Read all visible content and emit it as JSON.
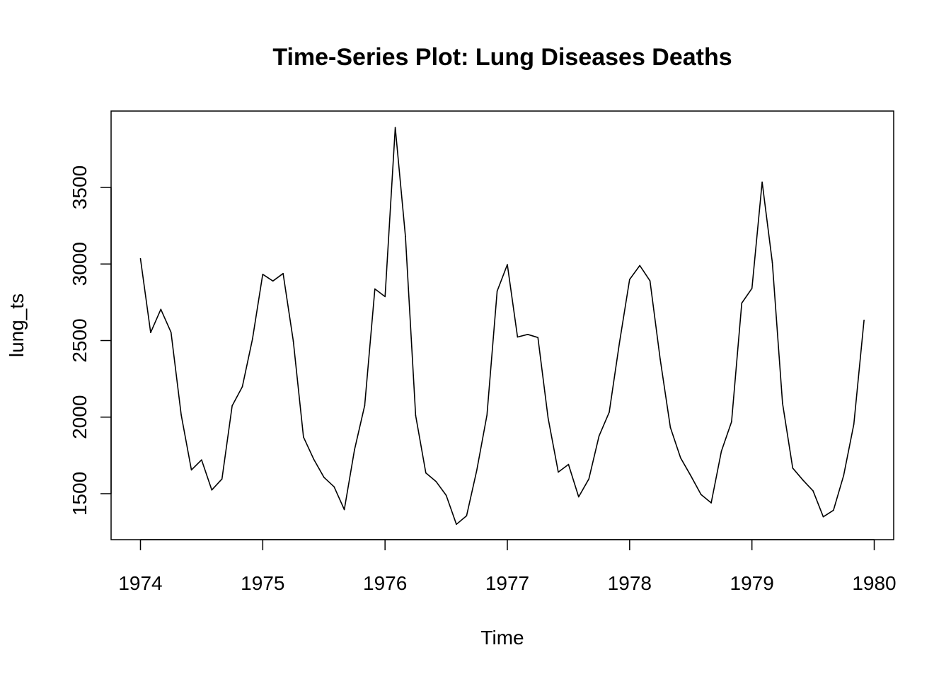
{
  "chart_data": {
    "type": "line",
    "title": "Time-Series Plot: Lung Diseases Deaths",
    "xlabel": "Time",
    "ylabel": "lung_ts",
    "xlim": [
      1974,
      1980
    ],
    "ylim": [
      1300,
      3900
    ],
    "x_ticks": [
      1974,
      1975,
      1976,
      1977,
      1978,
      1979,
      1980
    ],
    "y_ticks": [
      1500,
      2000,
      2500,
      3000,
      3500
    ],
    "series": [
      {
        "start": 1974,
        "frequency": 12,
        "values": [
          3035,
          2552,
          2704,
          2554,
          2014,
          1655,
          1721,
          1524,
          1596,
          2074,
          2199,
          2512,
          2933,
          2889,
          2938,
          2497,
          1870,
          1726,
          1607,
          1545,
          1396,
          1787,
          2076,
          2837,
          2787,
          3891,
          3179,
          2011,
          1636,
          1580,
          1489,
          1300,
          1356,
          1653,
          2013,
          2823,
          2996,
          2523,
          2540,
          2520,
          1994,
          1641,
          1691,
          1479,
          1596,
          1877,
          2032,
          2484,
          2899,
          2990,
          2890,
          2379,
          1933,
          1734,
          1617,
          1495,
          1440,
          1777,
          1970,
          2745,
          2841,
          3535,
          3010,
          2091,
          1667,
          1589,
          1518,
          1349,
          1392,
          1619,
          1954,
          2633
        ]
      }
    ]
  }
}
